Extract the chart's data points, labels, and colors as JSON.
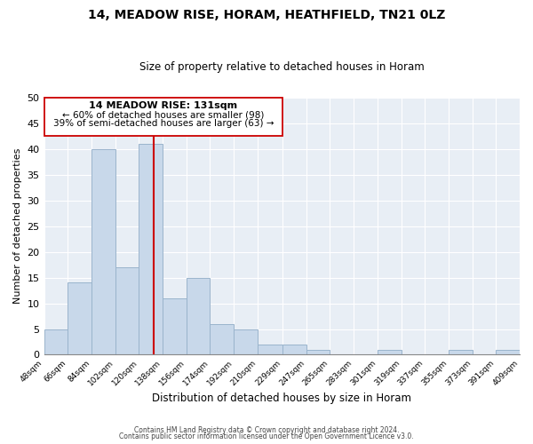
{
  "title": "14, MEADOW RISE, HORAM, HEATHFIELD, TN21 0LZ",
  "subtitle": "Size of property relative to detached houses in Horam",
  "xlabel": "Distribution of detached houses by size in Horam",
  "ylabel": "Number of detached properties",
  "bar_color": "#c8d8ea",
  "bar_edge_color": "#9ab4cc",
  "bins": [
    48,
    66,
    84,
    102,
    120,
    138,
    156,
    174,
    192,
    210,
    229,
    247,
    265,
    283,
    301,
    319,
    337,
    355,
    373,
    391,
    409
  ],
  "bin_labels": [
    "48sqm",
    "66sqm",
    "84sqm",
    "102sqm",
    "120sqm",
    "138sqm",
    "156sqm",
    "174sqm",
    "192sqm",
    "210sqm",
    "229sqm",
    "247sqm",
    "265sqm",
    "283sqm",
    "301sqm",
    "319sqm",
    "337sqm",
    "355sqm",
    "373sqm",
    "391sqm",
    "409sqm"
  ],
  "values": [
    5,
    14,
    40,
    17,
    41,
    11,
    15,
    6,
    5,
    2,
    2,
    1,
    0,
    0,
    1,
    0,
    0,
    1,
    0,
    1
  ],
  "ylim": [
    0,
    50
  ],
  "yticks": [
    0,
    5,
    10,
    15,
    20,
    25,
    30,
    35,
    40,
    45,
    50
  ],
  "annotation_title": "14 MEADOW RISE: 131sqm",
  "annotation_line1": "← 60% of detached houses are smaller (98)",
  "annotation_line2": "39% of semi-detached houses are larger (63) →",
  "red_line_color": "#cc0000",
  "footer1": "Contains HM Land Registry data © Crown copyright and database right 2024.",
  "footer2": "Contains public sector information licensed under the Open Government Licence v3.0.",
  "background_color": "#ffffff",
  "plot_bg_color": "#e8eef5",
  "grid_color": "#ffffff"
}
